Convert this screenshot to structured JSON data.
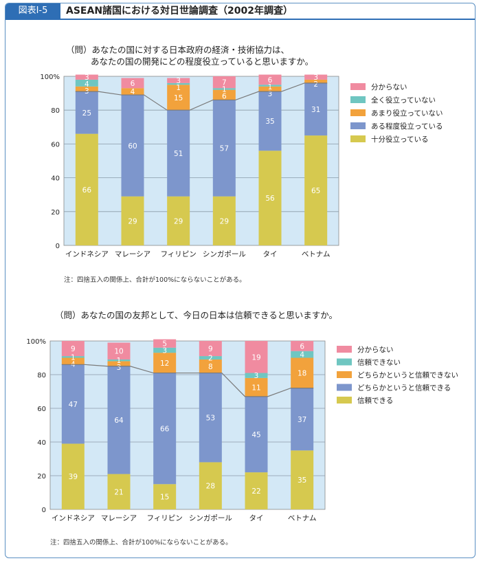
{
  "header": {
    "figure_label": "図表Ⅰ-5",
    "title": "ASEAN諸国における対日世論調査（2002年調査）"
  },
  "chart_data": [
    {
      "type": "bar",
      "stacked": true,
      "question_line1": "（問）あなたの国に対する日本政府の経済・技術協力は、",
      "question_line2": "あなたの国の開発にどの程度役立っていると思いますか。",
      "note": "注：四捨五入の関係上、合計が100%にならないことがある。",
      "categories": [
        "インドネシア",
        "マレーシア",
        "フィリピン",
        "シンガポール",
        "タイ",
        "ベトナム"
      ],
      "ylim": [
        0,
        100
      ],
      "yticks": [
        "0",
        "20",
        "40",
        "60",
        "80",
        "100%"
      ],
      "grid": true,
      "legend_position": "right",
      "series": [
        {
          "name": "十分役立っている",
          "color": "#d6c94f",
          "values": [
            66,
            29,
            29,
            29,
            56,
            65
          ]
        },
        {
          "name": "ある程度役立っている",
          "color": "#7d96cc",
          "values": [
            25,
            60,
            51,
            57,
            35,
            31
          ]
        },
        {
          "name": "あまり役立っていない",
          "color": "#f2a23c",
          "values": [
            3,
            4,
            15,
            6,
            3,
            2
          ]
        },
        {
          "name": "全く役立っていない",
          "color": "#6fc6c1",
          "values": [
            4,
            0,
            1,
            1,
            1,
            0
          ]
        },
        {
          "name": "分からない",
          "color": "#f08ba0",
          "values": [
            3,
            6,
            3,
            7,
            6,
            3
          ]
        }
      ]
    },
    {
      "type": "bar",
      "stacked": true,
      "question_line1": "（問）あなたの国の友邦として、今日の日本は信頼できると思いますか。",
      "note": "注：四捨五入の関係上、合計が100%にならないことがある。",
      "categories": [
        "インドネシア",
        "マレーシア",
        "フィリピン",
        "シンガポール",
        "タイ",
        "ベトナム"
      ],
      "ylim": [
        0,
        100
      ],
      "yticks": [
        "0",
        "20",
        "40",
        "60",
        "80",
        "100%"
      ],
      "grid": true,
      "legend_position": "right",
      "series": [
        {
          "name": "信頼できる",
          "color": "#d6c94f",
          "values": [
            39,
            21,
            15,
            28,
            22,
            35
          ]
        },
        {
          "name": "どちらかというと信頼できる",
          "color": "#7d96cc",
          "values": [
            47,
            64,
            66,
            53,
            45,
            37
          ]
        },
        {
          "name": "どちらかというと信頼できない",
          "color": "#f2a23c",
          "values": [
            4,
            3,
            12,
            8,
            11,
            18
          ]
        },
        {
          "name": "信頼できない",
          "color": "#6fc6c1",
          "values": [
            1,
            1,
            3,
            2,
            3,
            4
          ]
        },
        {
          "name": "分からない",
          "color": "#f08ba0",
          "values": [
            9,
            10,
            5,
            9,
            19,
            6
          ]
        }
      ]
    }
  ]
}
